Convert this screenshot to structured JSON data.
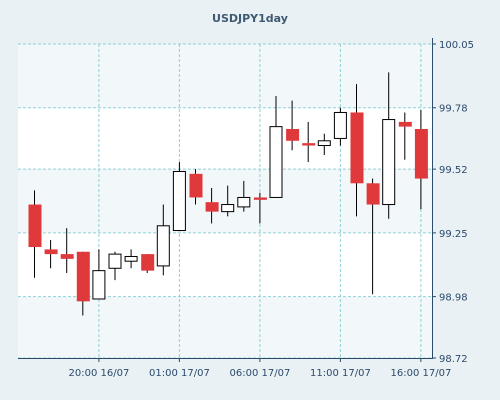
{
  "chart_data": {
    "type": "candlestick",
    "title": "USDJPY1day",
    "x_tick_labels": [
      "20:00 16/07",
      "01:00 17/07",
      "06:00 17/07",
      "11:00 17/07",
      "16:00 17/07"
    ],
    "y_tick_labels": [
      "100.05",
      "99.78",
      "99.52",
      "99.25",
      "98.98",
      "98.72"
    ],
    "ylim": [
      98.72,
      100.05
    ],
    "grid": true,
    "colors": {
      "up": "#ffffff",
      "down": "#e0393b",
      "outline": "#000000",
      "grid": "#8fd2d6",
      "band": "#f2f7fa",
      "axis": "#2c4a6b"
    },
    "candles": [
      {
        "open": 99.37,
        "high": 99.43,
        "low": 99.06,
        "close": 99.19
      },
      {
        "open": 99.18,
        "high": 99.22,
        "low": 99.1,
        "close": 99.16
      },
      {
        "open": 99.16,
        "high": 99.27,
        "low": 99.08,
        "close": 99.14
      },
      {
        "open": 99.17,
        "high": 99.17,
        "low": 98.9,
        "close": 98.96
      },
      {
        "open": 98.97,
        "high": 99.18,
        "low": 98.97,
        "close": 99.09
      },
      {
        "open": 99.1,
        "high": 99.17,
        "low": 99.05,
        "close": 99.16
      },
      {
        "open": 99.13,
        "high": 99.18,
        "low": 99.1,
        "close": 99.15
      },
      {
        "open": 99.16,
        "high": 99.16,
        "low": 99.08,
        "close": 99.09
      },
      {
        "open": 99.11,
        "high": 99.37,
        "low": 99.07,
        "close": 99.28
      },
      {
        "open": 99.26,
        "high": 99.55,
        "low": 99.26,
        "close": 99.51
      },
      {
        "open": 99.5,
        "high": 99.52,
        "low": 99.37,
        "close": 99.4
      },
      {
        "open": 99.38,
        "high": 99.44,
        "low": 99.29,
        "close": 99.34
      },
      {
        "open": 99.34,
        "high": 99.45,
        "low": 99.32,
        "close": 99.37
      },
      {
        "open": 99.36,
        "high": 99.47,
        "low": 99.34,
        "close": 99.4
      },
      {
        "open": 99.4,
        "high": 99.42,
        "low": 99.29,
        "close": 99.39
      },
      {
        "open": 99.4,
        "high": 99.83,
        "low": 99.4,
        "close": 99.7
      },
      {
        "open": 99.69,
        "high": 99.81,
        "low": 99.6,
        "close": 99.64
      },
      {
        "open": 99.63,
        "high": 99.72,
        "low": 99.55,
        "close": 99.62
      },
      {
        "open": 99.62,
        "high": 99.67,
        "low": 99.58,
        "close": 99.64
      },
      {
        "open": 99.65,
        "high": 99.78,
        "low": 99.62,
        "close": 99.76
      },
      {
        "open": 99.76,
        "high": 99.88,
        "low": 99.32,
        "close": 99.46
      },
      {
        "open": 99.46,
        "high": 99.48,
        "low": 98.99,
        "close": 99.37
      },
      {
        "open": 99.37,
        "high": 99.93,
        "low": 99.31,
        "close": 99.73
      },
      {
        "open": 99.72,
        "high": 99.76,
        "low": 99.56,
        "close": 99.7
      },
      {
        "open": 99.69,
        "high": 99.77,
        "low": 99.35,
        "close": 99.48
      }
    ]
  }
}
